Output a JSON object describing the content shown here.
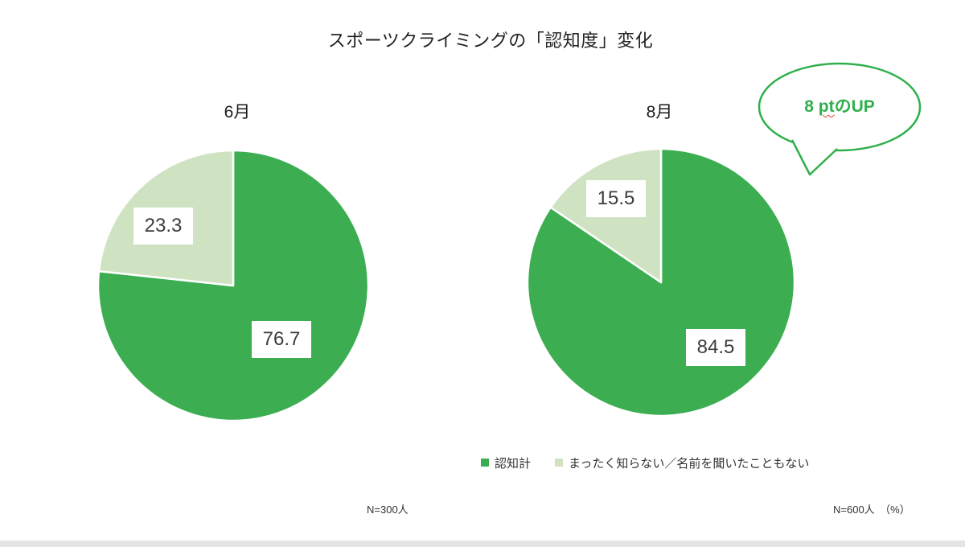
{
  "colors": {
    "pie_dark_green": "#3cae51",
    "pie_light_green": "#cfe3c2",
    "slice_border": "#ffffff",
    "callout_green": "#2fb04c",
    "label_text": "#3d3d3d",
    "footer_bar": "#e4e4e6",
    "spellcheck_red": "#e0462f"
  },
  "callout": {
    "num": "8 ",
    "unit": "pt",
    "suffix": "のUP"
  },
  "chart_data": {
    "type": "pie",
    "title": "スポーツクライミングの「認知度」変化",
    "unit": "%",
    "legend_position": "bottom-right",
    "legend": [
      {
        "label": "認知計",
        "color": "#3cae51"
      },
      {
        "label": "まったく知らない／名前を聞いたこともない",
        "color": "#cfe3c2"
      }
    ],
    "charts": [
      {
        "title": "6月",
        "categories": [
          "認知計",
          "まったく知らない／名前を聞いたこともない"
        ],
        "values": [
          76.7,
          23.3
        ],
        "n_label": "N=300人",
        "start_angle_deg": 0,
        "direction": "clockwise"
      },
      {
        "title": "8月",
        "categories": [
          "認知計",
          "まったく知らない／名前を聞いたこともない"
        ],
        "values": [
          84.5,
          15.5
        ],
        "n_label": "N=600人　（%）",
        "start_angle_deg": 0,
        "direction": "clockwise"
      }
    ],
    "annotation": "8 ptのUP"
  }
}
